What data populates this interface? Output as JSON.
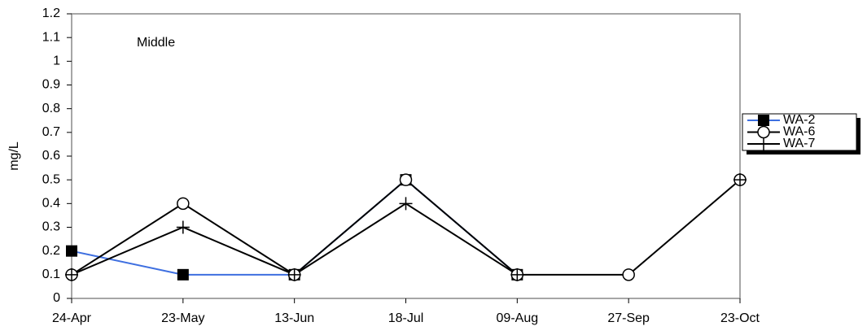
{
  "chart_data": {
    "type": "line",
    "title": "Middle",
    "y_label": "mg/L",
    "categories": [
      "24-Apr",
      "23-May",
      "13-Jun",
      "18-Jul",
      "09-Aug",
      "27-Sep",
      "23-Oct"
    ],
    "series": [
      {
        "name": "WA-2",
        "color": "#3e6fe0",
        "marker": "square",
        "values": [
          0.2,
          0.1,
          0.1,
          0.5,
          0.1,
          null,
          null
        ]
      },
      {
        "name": "WA-6",
        "color": "#000000",
        "marker": "circle",
        "values": [
          0.1,
          0.4,
          0.1,
          0.5,
          0.1,
          0.1,
          0.5
        ]
      },
      {
        "name": "WA-7",
        "color": "#000000",
        "marker": "plus",
        "values": [
          0.1,
          0.3,
          0.1,
          0.4,
          0.1,
          null,
          0.5
        ]
      }
    ],
    "ylim": [
      0,
      1.2
    ],
    "yticks": [
      0,
      0.1,
      0.2,
      0.3,
      0.4,
      0.5,
      0.6,
      0.7,
      0.8,
      0.9,
      1,
      1.1,
      1.2
    ],
    "grid": false,
    "legend": "right"
  }
}
